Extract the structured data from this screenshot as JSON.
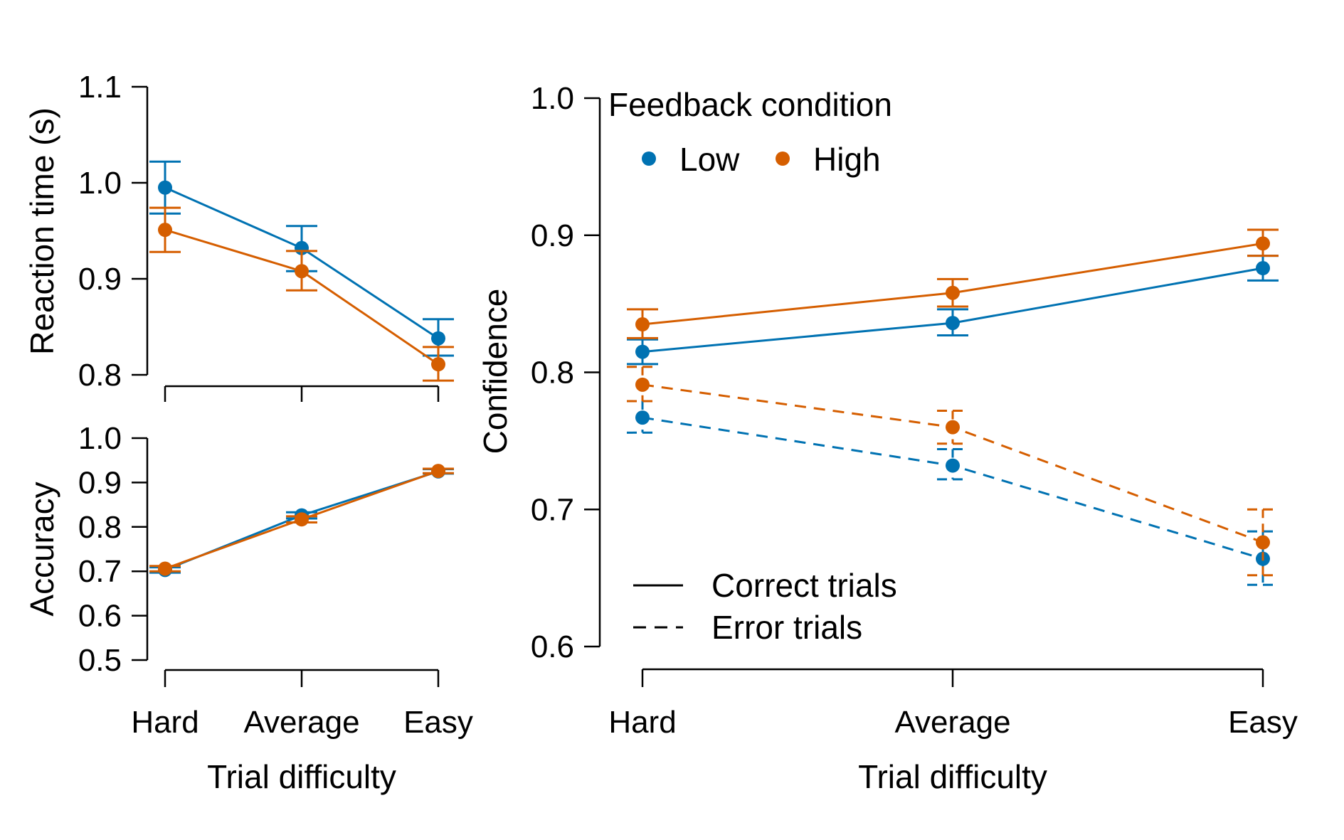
{
  "colors": {
    "low": "#0072B2",
    "high": "#D55E00",
    "axis": "#000000",
    "background": "#ffffff"
  },
  "legend": {
    "title": "Feedback condition",
    "items": [
      {
        "key": "low",
        "label": "Low"
      },
      {
        "key": "high",
        "label": "High"
      }
    ],
    "lines": [
      {
        "style": "solid",
        "label": "Correct trials"
      },
      {
        "style": "dashed",
        "label": "Error trials"
      }
    ]
  },
  "chart_data": [
    {
      "type": "line",
      "panel": "top-left",
      "categories": [
        "Hard",
        "Average",
        "Easy"
      ],
      "xlabel": "",
      "ylabel": "Reaction time (s)",
      "ylim": [
        0.8,
        1.1
      ],
      "yticks": [
        "0.8",
        "0.9",
        "1.0",
        "1.1"
      ],
      "xtick_labels_visible": false,
      "series": [
        {
          "name": "Low",
          "color_key": "low",
          "style": "solid",
          "values": [
            0.995,
            0.932,
            0.838
          ],
          "lower": [
            0.968,
            0.908,
            0.82
          ],
          "upper": [
            1.022,
            0.955,
            0.858
          ]
        },
        {
          "name": "High",
          "color_key": "high",
          "style": "solid",
          "values": [
            0.951,
            0.908,
            0.811
          ],
          "lower": [
            0.928,
            0.888,
            0.794
          ],
          "upper": [
            0.974,
            0.929,
            0.829
          ]
        }
      ]
    },
    {
      "type": "line",
      "panel": "bottom-left",
      "categories": [
        "Hard",
        "Average",
        "Easy"
      ],
      "xlabel": "Trial difficulty",
      "ylabel": "Accuracy",
      "ylim": [
        0.5,
        1.0
      ],
      "yticks": [
        "0.5",
        "0.6",
        "0.7",
        "0.8",
        "0.9",
        "1.0"
      ],
      "xtick_labels_visible": true,
      "series": [
        {
          "name": "Low",
          "color_key": "low",
          "style": "solid",
          "values": [
            0.703,
            0.826,
            0.925
          ],
          "lower": [
            0.697,
            0.819,
            0.92
          ],
          "upper": [
            0.709,
            0.833,
            0.93
          ]
        },
        {
          "name": "High",
          "color_key": "high",
          "style": "solid",
          "values": [
            0.706,
            0.817,
            0.926
          ],
          "lower": [
            0.7,
            0.81,
            0.921
          ],
          "upper": [
            0.712,
            0.824,
            0.931
          ]
        }
      ]
    },
    {
      "type": "line",
      "panel": "right",
      "categories": [
        "Hard",
        "Average",
        "Easy"
      ],
      "xlabel": "Trial difficulty",
      "ylabel": "Confidence",
      "ylim": [
        0.6,
        1.0
      ],
      "yticks": [
        "0.6",
        "0.7",
        "0.8",
        "0.9",
        "1.0"
      ],
      "xtick_labels_visible": true,
      "series": [
        {
          "name": "Low",
          "color_key": "low",
          "style": "solid",
          "trials": "Correct trials",
          "values": [
            0.815,
            0.836,
            0.876
          ],
          "lower": [
            0.806,
            0.827,
            0.867
          ],
          "upper": [
            0.824,
            0.846,
            0.885
          ]
        },
        {
          "name": "High",
          "color_key": "high",
          "style": "solid",
          "trials": "Correct trials",
          "values": [
            0.835,
            0.858,
            0.894
          ],
          "lower": [
            0.825,
            0.848,
            0.885
          ],
          "upper": [
            0.846,
            0.868,
            0.904
          ]
        },
        {
          "name": "Low",
          "color_key": "low",
          "style": "dashed",
          "trials": "Error trials",
          "values": [
            0.767,
            0.732,
            0.664
          ],
          "lower": [
            0.756,
            0.722,
            0.645
          ],
          "upper": [
            0.779,
            0.744,
            0.684
          ]
        },
        {
          "name": "High",
          "color_key": "high",
          "style": "dashed",
          "trials": "Error trials",
          "values": [
            0.791,
            0.76,
            0.676
          ],
          "lower": [
            0.779,
            0.748,
            0.652
          ],
          "upper": [
            0.804,
            0.772,
            0.7
          ]
        }
      ]
    }
  ]
}
